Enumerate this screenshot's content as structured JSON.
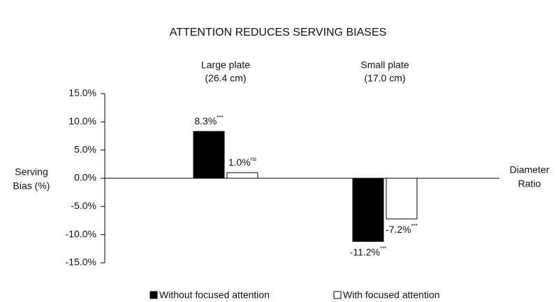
{
  "chart_data": {
    "type": "bar",
    "title": "ATTENTION REDUCES SERVING BIASES",
    "categories": [
      "Large plate",
      "Small plate"
    ],
    "category_details": [
      "(26.4 cm)",
      "(17.0 cm)"
    ],
    "ylabel": [
      "Serving",
      "Bias (%)"
    ],
    "xlabel": [
      "Diameter",
      "Ratio"
    ],
    "series": [
      {
        "name": "Without focused attention",
        "color": "#000000",
        "values": [
          8.3,
          -11.2
        ],
        "value_labels": [
          "8.3%",
          "-11.2%"
        ],
        "significance": [
          "***",
          "***"
        ]
      },
      {
        "name": "With focused attention",
        "color": "#ffffff",
        "values": [
          1.0,
          -7.2
        ],
        "value_labels": [
          "1.0%",
          "-7.2%"
        ],
        "significance": [
          "ns",
          "***"
        ]
      }
    ],
    "ylim": [
      -15,
      15
    ],
    "yticks": [
      {
        "value": -15,
        "label": "-15.0%"
      },
      {
        "value": -10,
        "label": "-10.0%"
      },
      {
        "value": -5,
        "label": "-5.0%"
      },
      {
        "value": 0,
        "label": "0.0%"
      },
      {
        "value": 5,
        "label": "5.0%"
      },
      {
        "value": 10,
        "label": "10.0%"
      },
      {
        "value": 15,
        "label": "15.0%"
      }
    ],
    "legend": "bottom"
  }
}
